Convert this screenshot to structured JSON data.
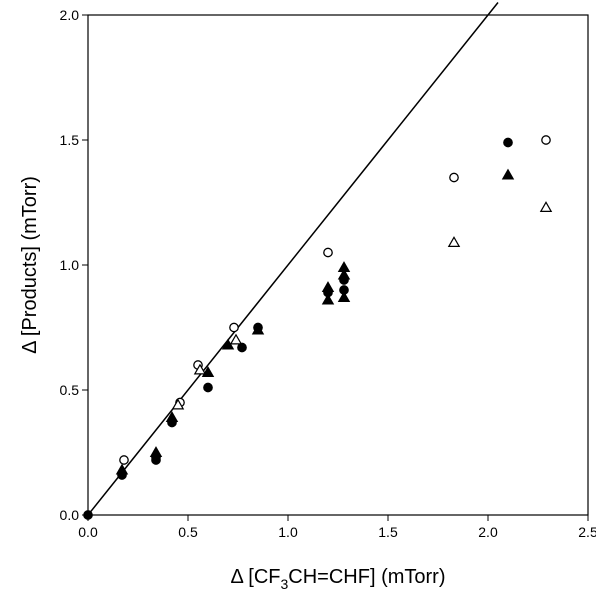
{
  "chart_data": {
    "type": "scatter",
    "xlabel": "Δ [CF3CH=CHF] (mTorr)",
    "xlabel_parts": {
      "prefix": "Δ [CF",
      "sub": "3",
      "suffix": "CH=CHF] (mTorr)"
    },
    "ylabel": "Δ [Products] (mTorr)",
    "xlim": [
      0,
      2.5
    ],
    "ylim": [
      0,
      2.0
    ],
    "xticks": [
      0.0,
      0.5,
      1.0,
      1.5,
      2.0,
      2.5
    ],
    "xtick_labels": [
      "0.0",
      "0.5",
      "1.0",
      "1.5",
      "2.0",
      "2.5"
    ],
    "yticks": [
      0.0,
      0.5,
      1.0,
      1.5,
      2.0
    ],
    "ytick_labels": [
      "0.0",
      "0.5",
      "1.0",
      "1.5",
      "2.0"
    ],
    "grid": false,
    "series": [
      {
        "marker": "filled-circle",
        "color": "#000000",
        "points": [
          [
            0.0,
            0.0
          ],
          [
            0.17,
            0.16
          ],
          [
            0.34,
            0.23
          ],
          [
            0.34,
            0.22
          ],
          [
            0.42,
            0.37
          ],
          [
            0.6,
            0.51
          ],
          [
            0.77,
            0.67
          ],
          [
            0.85,
            0.75
          ],
          [
            1.2,
            0.89
          ],
          [
            1.28,
            0.94
          ],
          [
            1.28,
            0.9
          ],
          [
            2.1,
            1.49
          ]
        ]
      },
      {
        "marker": "open-circle",
        "color": "#000000",
        "points": [
          [
            0.18,
            0.22
          ],
          [
            0.46,
            0.45
          ],
          [
            0.55,
            0.6
          ],
          [
            0.73,
            0.75
          ],
          [
            1.2,
            1.05
          ],
          [
            1.83,
            1.35
          ],
          [
            2.29,
            1.5
          ]
        ]
      },
      {
        "marker": "filled-triangle",
        "color": "#000000",
        "points": [
          [
            0.17,
            0.18
          ],
          [
            0.34,
            0.25
          ],
          [
            0.42,
            0.39
          ],
          [
            0.6,
            0.57
          ],
          [
            0.7,
            0.68
          ],
          [
            0.85,
            0.74
          ],
          [
            1.2,
            0.91
          ],
          [
            1.2,
            0.86
          ],
          [
            1.28,
            0.99
          ],
          [
            1.28,
            0.96
          ],
          [
            1.28,
            0.87
          ],
          [
            2.1,
            1.36
          ]
        ]
      },
      {
        "marker": "open-triangle",
        "color": "#000000",
        "points": [
          [
            0.45,
            0.44
          ],
          [
            0.56,
            0.58
          ],
          [
            0.74,
            0.7
          ],
          [
            1.83,
            1.09
          ],
          [
            2.29,
            1.23
          ]
        ]
      }
    ],
    "lines": [
      {
        "x": [
          0.0,
          2.05
        ],
        "y": [
          0.0,
          2.05
        ],
        "color": "#000000"
      }
    ]
  }
}
